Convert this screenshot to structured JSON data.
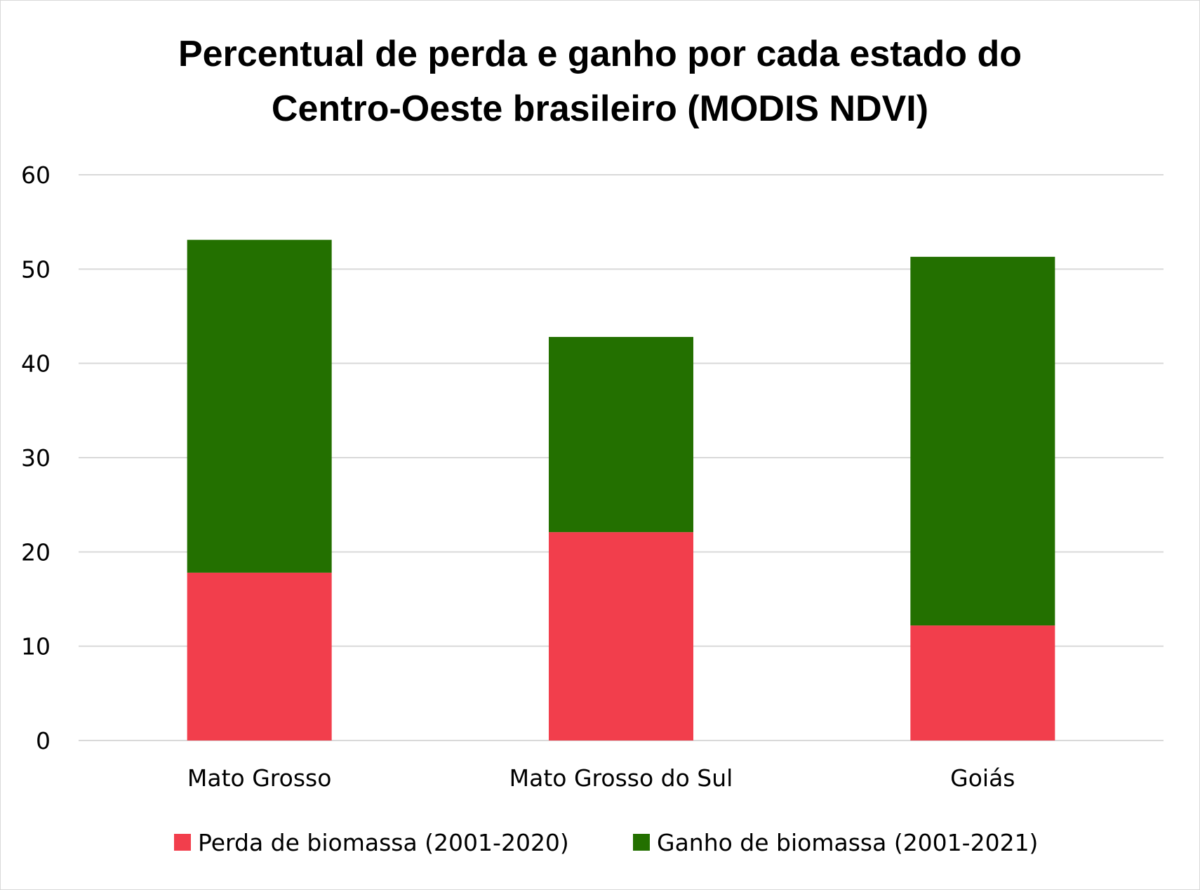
{
  "chart_data": {
    "type": "bar",
    "stacked": true,
    "title_lines": [
      "Percentual de perda e ganho por cada estado do",
      "Centro-Oeste brasileiro (MODIS NDVI)"
    ],
    "categories": [
      "Mato Grosso",
      "Mato Grosso do Sul",
      "Goiás"
    ],
    "series": [
      {
        "name": "Perda de biomassa (2001-2020)",
        "color": "#f23e4c",
        "values": [
          17.8,
          22.1,
          12.2
        ]
      },
      {
        "name": "Ganho de biomassa (2001-2021)",
        "color": "#237000",
        "values": [
          35.3,
          20.7,
          39.1
        ]
      }
    ],
    "ylim": [
      0,
      60
    ],
    "yticks": [
      "0",
      "10",
      "20",
      "30",
      "40",
      "50",
      "60"
    ],
    "grid": true,
    "legend_position": "bottom"
  }
}
